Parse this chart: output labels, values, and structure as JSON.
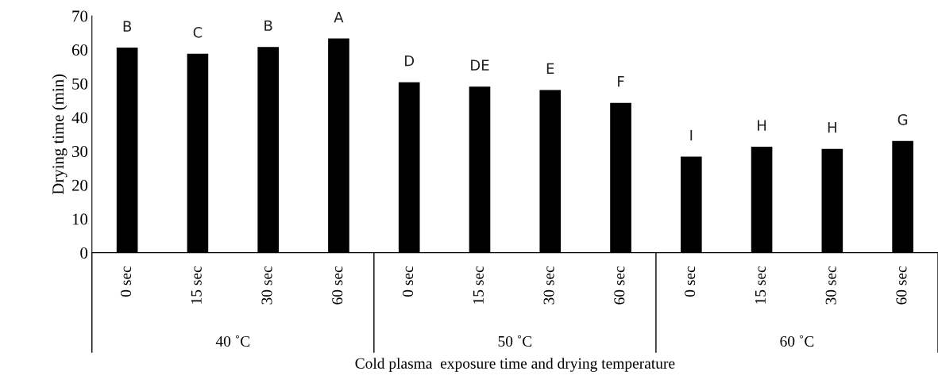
{
  "chart_data": {
    "type": "bar",
    "xlabel": "Cold plasma  exposure time and drying temperature",
    "ylabel": "Drying time (min)",
    "categories": [
      "0 sec",
      "15 sec",
      "30 sec",
      "60 sec",
      "0 sec",
      "15 sec",
      "30 sec",
      "60 sec",
      "0 sec",
      "15 sec",
      "30 sec",
      "60 sec"
    ],
    "values": [
      60.6,
      58.8,
      60.8,
      63.3,
      50.4,
      49.1,
      48.1,
      44.3,
      28.4,
      31.3,
      30.7,
      33.0
    ],
    "value_labels": [
      "B",
      "C",
      "B",
      "A",
      "D",
      "DE",
      "E",
      "F",
      "I",
      "H",
      "H",
      "G"
    ],
    "color": "#000000",
    "annotations": [
      "40 ˚C",
      "50 ˚C",
      "60 ˚C"
    ],
    "ylim": [
      0,
      70
    ],
    "yticks": [
      0,
      10,
      20,
      30,
      40,
      50,
      60,
      70
    ],
    "grid": false,
    "legend": false
  }
}
